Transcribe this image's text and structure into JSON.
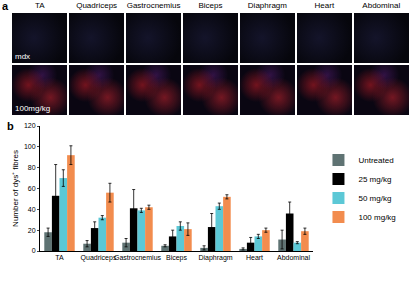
{
  "panel_a": {
    "label": "a",
    "columns": [
      "TA",
      "Quadriceps",
      "Gastrocnemius",
      "Biceps",
      "Diaphragm",
      "Heart",
      "Abdominal"
    ],
    "rows": [
      "mdx",
      "100mg/kg"
    ]
  },
  "chart_data": {
    "type": "bar",
    "title": "b",
    "y_label": "Number of dys⁺ fibres",
    "categories": [
      "TA",
      "Quadriceps",
      "Gastrocnemius",
      "Biceps",
      "Diaphragm",
      "Heart",
      "Abdominal"
    ],
    "series": [
      {
        "name": "Untreated",
        "color": "#5f7373",
        "values": [
          18,
          7,
          8,
          5,
          3,
          2,
          11
        ],
        "errors": [
          4,
          3,
          4,
          1,
          2,
          1,
          9
        ]
      },
      {
        "name": "25 mg/kg",
        "color": "#000000",
        "values": [
          53,
          22,
          41,
          14,
          23,
          8,
          36
        ],
        "errors": [
          30,
          6,
          18,
          6,
          13,
          5,
          11
        ]
      },
      {
        "name": "50 mg/kg",
        "color": "#5cc8d6",
        "values": [
          70,
          32,
          39,
          24,
          43,
          14,
          8
        ],
        "errors": [
          8,
          2,
          2,
          4,
          3,
          2,
          1
        ]
      },
      {
        "name": "100 mg/kg",
        "color": "#f28c4e",
        "values": [
          92,
          56,
          42,
          21,
          52,
          20,
          19
        ],
        "errors": [
          9,
          9,
          2,
          6,
          2,
          2,
          3
        ]
      }
    ],
    "ylim": [
      0,
      120
    ],
    "yticks": [
      0,
      20,
      40,
      60,
      80,
      100,
      120
    ],
    "grid": false,
    "legend": "right"
  }
}
